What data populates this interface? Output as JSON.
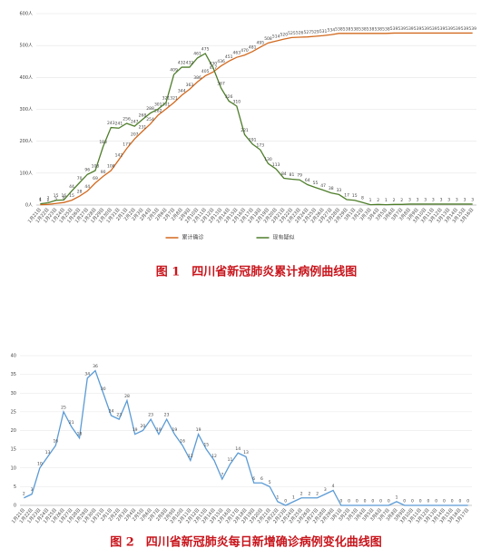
{
  "chart_data": [
    {
      "type": "line",
      "title": "图 1　四川省新冠肺炎累计病例曲线图",
      "categories": [
        "1月21日",
        "1月22日",
        "1月23日",
        "1月24日",
        "1月25日",
        "1月26日",
        "1月27日",
        "1月28日",
        "1月29日",
        "1月30日",
        "1月31日",
        "2月1日",
        "2月2日",
        "2月3日",
        "2月4日",
        "2月5日",
        "2月6日",
        "2月7日",
        "2月8日",
        "2月9日",
        "2月10日",
        "2月11日",
        "2月12日",
        "2月13日",
        "2月14日",
        "2月15日",
        "2月16日",
        "2月17日",
        "2月18日",
        "2月19日",
        "2月20日",
        "2月21日",
        "2月22日",
        "2月23日",
        "2月24日",
        "2月25日",
        "2月26日",
        "2月27日",
        "2月28日",
        "2月29日",
        "3月1日",
        "3月2日",
        "3月3日",
        "3月4日",
        "3月5日",
        "3月6日",
        "3月7日",
        "3月8日",
        "3月9日",
        "3月10日",
        "3月11日",
        "3月12日",
        "3月13日",
        "3月14日",
        "3月15日",
        "3月16日"
      ],
      "series": [
        {
          "name": "累计确诊",
          "color": "#d2691e",
          "values": [
            1,
            2,
            5,
            8,
            15,
            28,
            44,
            69,
            90,
            108,
            142,
            177,
            207,
            231,
            254,
            282,
            301,
            321,
            344,
            363,
            386,
            405,
            417,
            436,
            451,
            463,
            470,
            481,
            495,
            508,
            514,
            520,
            525,
            526,
            527,
            529,
            531,
            534,
            538,
            538,
            538,
            538,
            538,
            538,
            538,
            539,
            539,
            539,
            539,
            539,
            539,
            539,
            539,
            539,
            539,
            539
          ]
        },
        {
          "name": "现有疑似",
          "color": "#4e7d2a",
          "values": [
            4,
            7,
            15,
            16,
            44,
            70,
            96,
            108,
            183,
            243,
            241,
            256,
            247,
            268,
            288,
            301,
            321,
            409,
            432,
            432,
            461,
            475,
            430,
            367,
            326,
            310,
            221,
            191,
            173,
            130,
            113,
            84,
            81,
            79,
            64,
            55,
            47,
            38,
            33,
            17,
            15,
            8,
            1,
            2,
            1,
            2,
            2,
            3,
            3,
            3,
            3,
            3,
            3,
            3,
            3,
            3
          ]
        }
      ],
      "ylim": [
        0,
        600
      ],
      "yticks": [
        {
          "value": 0,
          "label": "0人"
        },
        {
          "value": 100,
          "label": "100人"
        },
        {
          "value": 200,
          "label": "200人"
        },
        {
          "value": 300,
          "label": "300人"
        },
        {
          "value": 400,
          "label": "400人"
        },
        {
          "value": 500,
          "label": "500人"
        },
        {
          "value": 600,
          "label": "600人"
        }
      ],
      "legend": "bottom"
    },
    {
      "type": "line",
      "title": "图 2　四川省新冠肺炎每日新增确诊病例变化曲线图",
      "categories": [
        "1月21日",
        "1月22日",
        "1月23日",
        "1月24日",
        "1月25日",
        "1月26日",
        "1月27日",
        "1月28日",
        "1月29日",
        "1月30日",
        "1月31日",
        "2月1日",
        "2月2日",
        "2月3日",
        "2月4日",
        "2月5日",
        "2月6日",
        "2月7日",
        "2月8日",
        "2月9日",
        "2月10日",
        "2月11日",
        "2月12日",
        "2月13日",
        "2月14日",
        "2月15日",
        "2月16日",
        "2月17日",
        "2月18日",
        "2月19日",
        "2月20日",
        "2月21日",
        "2月22日",
        "2月23日",
        "2月24日",
        "2月25日",
        "2月26日",
        "2月27日",
        "2月28日",
        "2月29日",
        "3月1日",
        "3月2日",
        "3月3日",
        "3月4日",
        "3月5日",
        "3月6日",
        "3月7日",
        "3月8日",
        "3月9日",
        "3月10日",
        "3月11日",
        "3月12日",
        "3月13日",
        "3月14日",
        "3月15日",
        "3月16日",
        "3月17日"
      ],
      "series": [
        {
          "color": "#5b9bd5",
          "values": [
            2,
            3,
            10,
            13,
            16,
            25,
            21,
            18,
            34,
            36,
            30,
            24,
            23,
            28,
            19,
            20,
            23,
            19,
            23,
            19,
            16,
            12,
            19,
            15,
            12,
            7,
            11,
            14,
            13,
            6,
            6,
            5,
            1,
            0,
            1,
            2,
            2,
            2,
            3,
            4,
            0,
            0,
            0,
            0,
            0,
            0,
            0,
            1,
            0,
            0,
            0,
            0,
            0,
            0,
            0,
            0,
            0
          ]
        }
      ],
      "ylim": [
        0,
        40
      ],
      "yticks": [
        0,
        5,
        10,
        15,
        20,
        25,
        30,
        35,
        40
      ]
    }
  ]
}
